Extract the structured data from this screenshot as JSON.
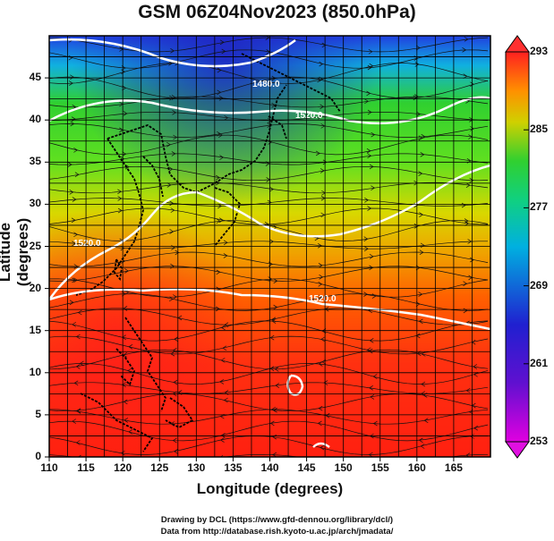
{
  "title": "GSM 06Z04Nov2023 (850.0hPa)",
  "axes": {
    "xlabel": "Longitude (degrees)",
    "ylabel": "Latitude  (degrees)",
    "x_ticks": [
      "110",
      "115",
      "120",
      "125",
      "130",
      "135",
      "140",
      "145",
      "150",
      "155",
      "160",
      "165"
    ],
    "y_ticks": [
      "0",
      "5",
      "10",
      "15",
      "20",
      "25",
      "30",
      "35",
      "40",
      "45"
    ],
    "xlim": [
      110,
      170
    ],
    "ylim": [
      0,
      50
    ]
  },
  "colorbar": {
    "ticks": [
      "253",
      "261",
      "269",
      "277",
      "285",
      "293"
    ],
    "range": [
      253,
      293
    ],
    "colors": [
      "#e000e0",
      "#2020d0",
      "#00b0e0",
      "#30d030",
      "#f0d000",
      "#ff5000",
      "#ff2020"
    ]
  },
  "contour_labels": [
    "1480.0",
    "1520.0",
    "1520.0",
    "1520.0"
  ],
  "credits": {
    "line1": "Drawing by DCL (https://www.gfd-dennou.org/library/dcl/)",
    "line2": "Data from http://database.rish.kyoto-u.ac.jp/arch/jmadata/"
  }
}
